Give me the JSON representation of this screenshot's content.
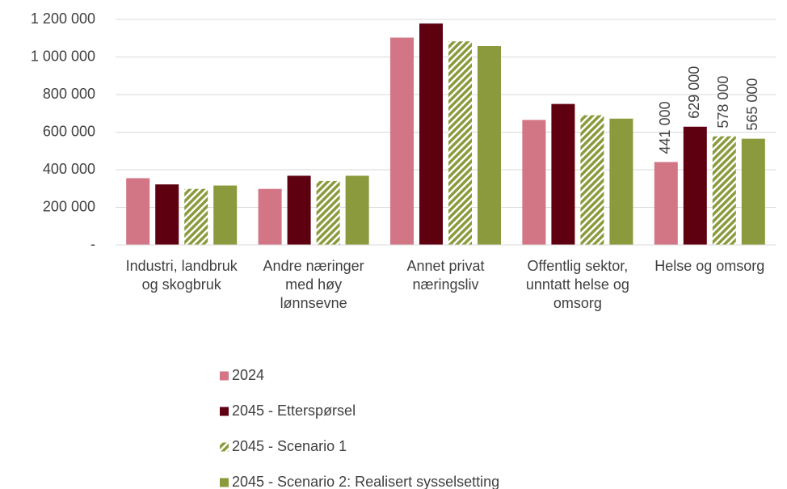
{
  "chart_data": {
    "type": "bar",
    "categories": [
      "Industri, landbruk og skogbruk",
      "Andre næringer med høy lønnsevne",
      "Annet privat næringsliv",
      "Offentlig sektor, unntatt helse og omsorg",
      "Helse og omsorg"
    ],
    "series": [
      {
        "name": "2024",
        "color": "#d27585",
        "values": [
          355000,
          298000,
          1103000,
          665000,
          441000
        ],
        "value_labels": [
          null,
          null,
          null,
          null,
          "441 000"
        ]
      },
      {
        "name": "2045 - Etterspørsel",
        "color": "#5e0010",
        "values": [
          322000,
          368000,
          1178000,
          750000,
          629000
        ],
        "value_labels": [
          null,
          null,
          null,
          null,
          "629 000"
        ]
      },
      {
        "name": "2045 - Scenario 1",
        "color": "#8a9a3c",
        "hatch": true,
        "values": [
          298000,
          340000,
          1083000,
          690000,
          578000
        ],
        "value_labels": [
          null,
          null,
          null,
          null,
          "578 000"
        ]
      },
      {
        "name": "2045 - Scenario 2: Realisert sysselsetting",
        "color": "#8a9a3c",
        "values": [
          316000,
          368000,
          1058000,
          672000,
          565000
        ],
        "value_labels": [
          null,
          null,
          null,
          null,
          "565 000"
        ]
      }
    ],
    "ylim": [
      0,
      1200000
    ],
    "yticks": [
      {
        "value": 0,
        "label": "-"
      },
      {
        "value": 200000,
        "label": "200 000"
      },
      {
        "value": 400000,
        "label": "400 000"
      },
      {
        "value": 600000,
        "label": "600 000"
      },
      {
        "value": 800000,
        "label": "800 000"
      },
      {
        "value": 1000000,
        "label": "1 000 000"
      },
      {
        "value": 1200000,
        "label": "1 200 000"
      }
    ],
    "grid": true,
    "legend": "bottom"
  }
}
